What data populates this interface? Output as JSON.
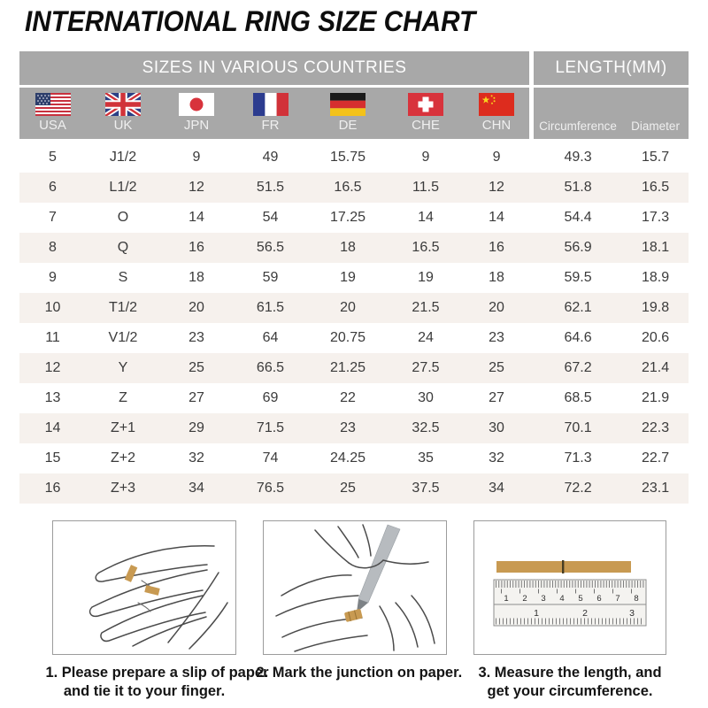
{
  "title": "INTERNATIONAL RING SIZE CHART",
  "chart_data": {
    "type": "table",
    "title": "INTERNATIONAL RING SIZE CHART",
    "group_headers": [
      "SIZES IN VARIOUS COUNTRIES",
      "LENGTH(MM)"
    ],
    "columns": [
      "USA",
      "UK",
      "JPN",
      "FR",
      "DE",
      "CHE",
      "CHN",
      "Circumference",
      "Diameter"
    ],
    "flags": [
      "usa-flag",
      "uk-flag",
      "japan-flag",
      "france-flag",
      "germany-flag",
      "switzerland-flag",
      "china-flag"
    ],
    "rows": [
      [
        "5",
        "J1/2",
        "9",
        "49",
        "15.75",
        "9",
        "9",
        "49.3",
        "15.7"
      ],
      [
        "6",
        "L1/2",
        "12",
        "51.5",
        "16.5",
        "11.5",
        "12",
        "51.8",
        "16.5"
      ],
      [
        "7",
        "O",
        "14",
        "54",
        "17.25",
        "14",
        "14",
        "54.4",
        "17.3"
      ],
      [
        "8",
        "Q",
        "16",
        "56.5",
        "18",
        "16.5",
        "16",
        "56.9",
        "18.1"
      ],
      [
        "9",
        "S",
        "18",
        "59",
        "19",
        "19",
        "18",
        "59.5",
        "18.9"
      ],
      [
        "10",
        "T1/2",
        "20",
        "61.5",
        "20",
        "21.5",
        "20",
        "62.1",
        "19.8"
      ],
      [
        "11",
        "V1/2",
        "23",
        "64",
        "20.75",
        "24",
        "23",
        "64.6",
        "20.6"
      ],
      [
        "12",
        "Y",
        "25",
        "66.5",
        "21.25",
        "27.5",
        "25",
        "67.2",
        "21.4"
      ],
      [
        "13",
        "Z",
        "27",
        "69",
        "22",
        "30",
        "27",
        "68.5",
        "21.9"
      ],
      [
        "14",
        "Z+1",
        "29",
        "71.5",
        "23",
        "32.5",
        "30",
        "70.1",
        "22.3"
      ],
      [
        "15",
        "Z+2",
        "32",
        "74",
        "24.25",
        "35",
        "32",
        "71.3",
        "22.7"
      ],
      [
        "16",
        "Z+3",
        "34",
        "76.5",
        "25",
        "37.5",
        "34",
        "72.2",
        "23.1"
      ]
    ]
  },
  "steps": [
    {
      "lines": [
        "1. Please prepare a slip of paper",
        "and tie it to your finger."
      ]
    },
    {
      "lines": [
        "2. Mark the junction on paper."
      ]
    },
    {
      "lines": [
        "3. Measure the length, and",
        "get your circumference."
      ],
      "ruler_cm": [
        "1",
        "2",
        "3",
        "4",
        "5",
        "6",
        "7",
        "8"
      ],
      "ruler_in": [
        "1",
        "2",
        "3"
      ]
    }
  ],
  "colors": {
    "header_gray": "#a8a8a8",
    "row_alt": "#f6f1ed",
    "paper_gold": "#c89a52",
    "title_black": "#0d0d0d"
  }
}
